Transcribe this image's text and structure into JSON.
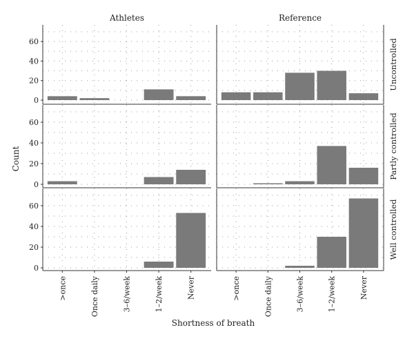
{
  "chart_data": {
    "type": "bar",
    "columns": [
      "Athletes",
      "Reference"
    ],
    "rows": [
      "Uncontrolled",
      "Partly controlled",
      "Well controlled"
    ],
    "categories": [
      ">once",
      "Once daily",
      "3–6/week",
      "1–2/week",
      "Never"
    ],
    "xlabel": "Shortness of breath",
    "ylabel": "Count",
    "ylim": [
      0,
      70
    ],
    "yticks": [
      0,
      20,
      40,
      60
    ],
    "grid": "dotted",
    "panels": [
      {
        "column": "Athletes",
        "row": "Uncontrolled",
        "values": [
          4,
          2,
          0,
          11,
          4
        ]
      },
      {
        "column": "Reference",
        "row": "Uncontrolled",
        "values": [
          8,
          8,
          28,
          30,
          7
        ]
      },
      {
        "column": "Athletes",
        "row": "Partly controlled",
        "values": [
          3,
          0,
          0,
          7,
          14
        ]
      },
      {
        "column": "Reference",
        "row": "Partly controlled",
        "values": [
          0,
          1,
          3,
          37,
          16
        ]
      },
      {
        "column": "Athletes",
        "row": "Well controlled",
        "values": [
          0,
          0,
          0,
          6,
          53
        ]
      },
      {
        "column": "Reference",
        "row": "Well controlled",
        "values": [
          0,
          0,
          2,
          30,
          67
        ]
      }
    ]
  },
  "colors": {
    "bar": "#7a7a7a",
    "axis": "#333333",
    "grid": "#9a9a9a"
  }
}
